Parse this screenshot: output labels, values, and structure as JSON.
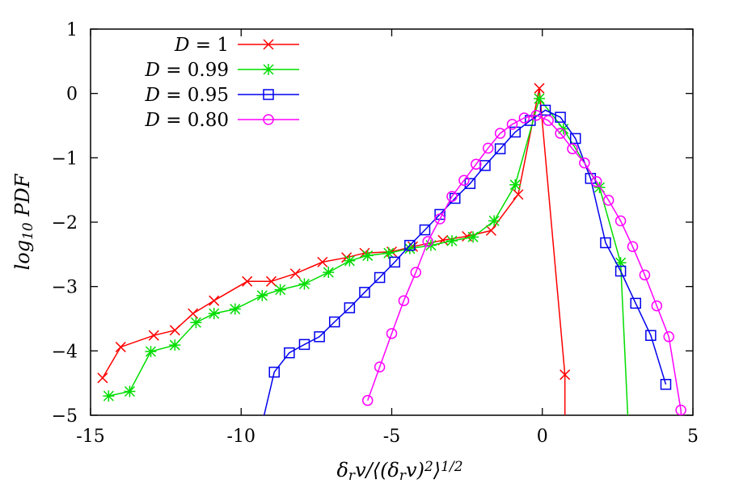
{
  "chart_data": {
    "type": "line",
    "xlabel": "δ_r v/⟨(δ_r v)^2⟩^{1/2}",
    "ylabel": "log_10 PDF",
    "xlim": [
      -15,
      5
    ],
    "ylim": [
      -5,
      1
    ],
    "xticks": [
      -15,
      -10,
      -5,
      0,
      5
    ],
    "yticks": [
      -5,
      -4,
      -3,
      -2,
      -1,
      0,
      1
    ],
    "xtick_labels": [
      "-15",
      "-10",
      "-5",
      "0",
      "5"
    ],
    "ytick_labels": [
      "−5",
      "−4",
      "−3",
      "−2",
      "−1",
      "0",
      "1"
    ],
    "grid": false,
    "legend_position": "top-left",
    "series": [
      {
        "name": "D = 1",
        "name_var": "D",
        "name_val": "= 1",
        "color": "#ff0000",
        "marker": "cross",
        "x": [
          -14.6,
          -14.0,
          -12.9,
          -12.2,
          -11.6,
          -10.9,
          -9.8,
          -9.0,
          -8.2,
          -7.3,
          -6.5,
          -5.9,
          -5.0,
          -4.3,
          -3.3,
          -2.5,
          -1.7,
          -0.8,
          -0.1,
          0.75
        ],
        "y": [
          -4.42,
          -3.94,
          -3.76,
          -3.68,
          -3.42,
          -3.22,
          -2.92,
          -2.92,
          -2.8,
          -2.62,
          -2.55,
          -2.48,
          -2.46,
          -2.38,
          -2.28,
          -2.22,
          -2.13,
          -1.57,
          0.08,
          -4.37
        ]
      },
      {
        "name": "D = 0.99",
        "name_var": "D",
        "name_val": "= 0.99",
        "color": "#00dd00",
        "marker": "star",
        "x": [
          -14.4,
          -13.7,
          -13.0,
          -12.2,
          -11.5,
          -10.9,
          -10.2,
          -9.3,
          -8.7,
          -7.9,
          -7.1,
          -6.4,
          -5.8,
          -5.1,
          -4.4,
          -3.7,
          -3.0,
          -2.3,
          -1.6,
          -0.9,
          -0.1,
          0.7,
          1.9,
          2.6
        ],
        "y": [
          -4.7,
          -4.63,
          -4.01,
          -3.91,
          -3.56,
          -3.42,
          -3.35,
          -3.14,
          -3.05,
          -2.96,
          -2.78,
          -2.6,
          -2.52,
          -2.48,
          -2.41,
          -2.36,
          -2.29,
          -2.23,
          -1.98,
          -1.42,
          -0.08,
          -0.55,
          -1.46,
          -2.63
        ]
      },
      {
        "name": "D = 0.95",
        "name_var": "D",
        "name_val": "= 0.95",
        "color": "#0000ee",
        "marker": "square",
        "x": [
          -8.9,
          -8.4,
          -7.9,
          -7.4,
          -6.9,
          -6.4,
          -5.9,
          -5.4,
          -4.9,
          -4.4,
          -3.9,
          -3.4,
          -2.9,
          -2.4,
          -1.9,
          -1.4,
          -0.9,
          -0.4,
          0.1,
          0.6,
          1.1,
          1.6,
          2.1,
          2.6,
          3.1,
          3.6,
          4.1
        ],
        "y": [
          -4.33,
          -4.03,
          -3.9,
          -3.78,
          -3.55,
          -3.33,
          -3.09,
          -2.86,
          -2.62,
          -2.36,
          -2.12,
          -1.88,
          -1.63,
          -1.4,
          -1.12,
          -0.86,
          -0.6,
          -0.42,
          -0.26,
          -0.37,
          -0.7,
          -1.32,
          -2.32,
          -2.76,
          -3.26,
          -3.76,
          -4.52
        ]
      },
      {
        "name": "D = 0.80",
        "name_var": "D",
        "name_val": "= 0.80",
        "color": "#ff00ff",
        "marker": "circle",
        "x": [
          -5.8,
          -5.4,
          -5.0,
          -4.6,
          -4.2,
          -3.8,
          -3.4,
          -3.0,
          -2.6,
          -2.2,
          -1.8,
          -1.4,
          -1.0,
          -0.6,
          -0.2,
          0.2,
          0.6,
          1.0,
          1.4,
          1.8,
          2.2,
          2.6,
          3.0,
          3.4,
          3.8,
          4.2,
          4.6
        ],
        "y": [
          -4.77,
          -4.25,
          -3.73,
          -3.22,
          -2.78,
          -2.3,
          -1.95,
          -1.6,
          -1.35,
          -1.1,
          -0.85,
          -0.62,
          -0.48,
          -0.38,
          -0.34,
          -0.42,
          -0.62,
          -0.86,
          -1.08,
          -1.37,
          -1.66,
          -1.98,
          -2.38,
          -2.82,
          -3.3,
          -3.78,
          -4.92
        ]
      }
    ]
  }
}
